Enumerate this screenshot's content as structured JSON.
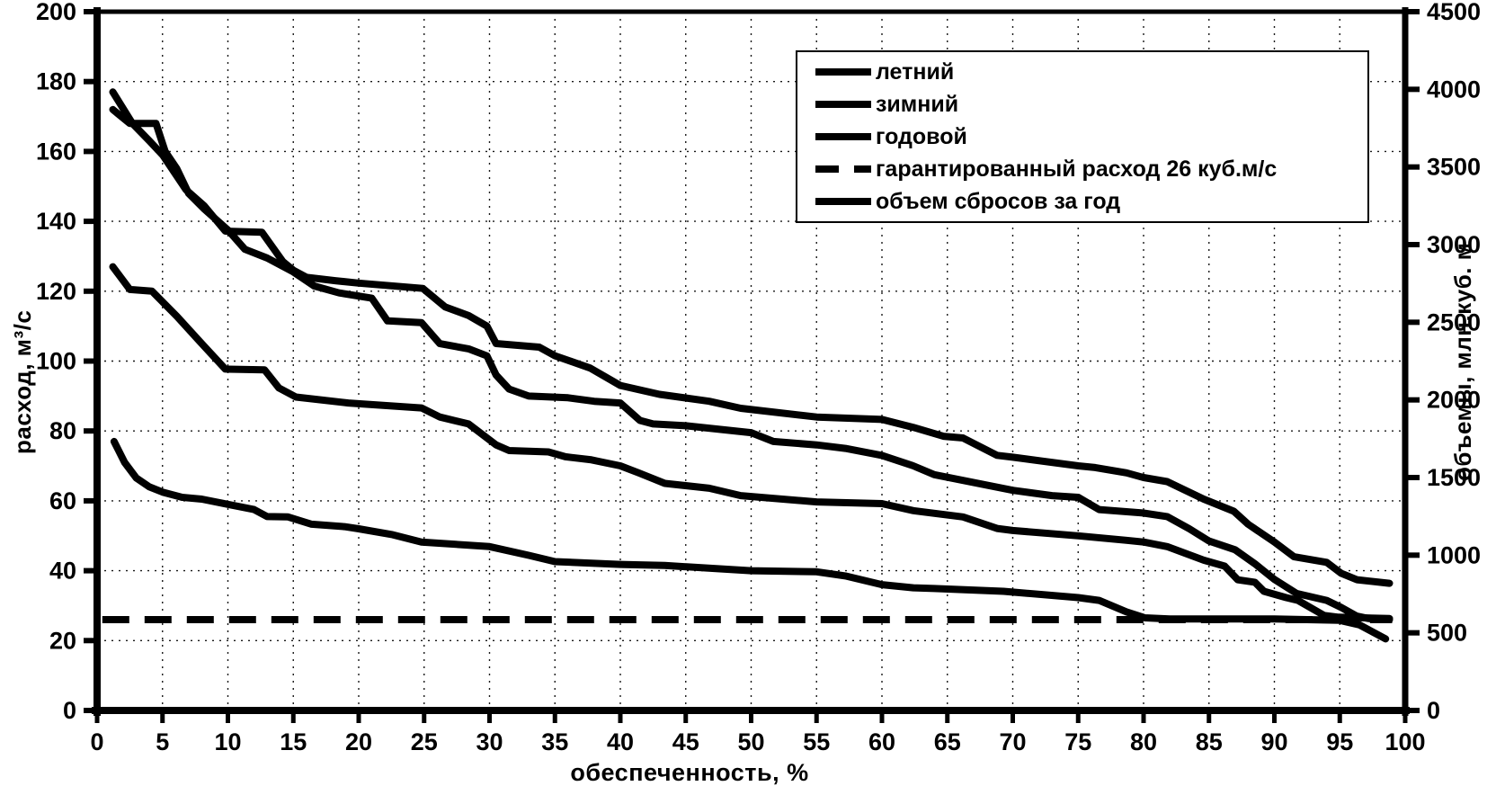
{
  "chart_data": {
    "type": "line",
    "title": "",
    "xlabel": "обеспеченность, %",
    "ylabel_left": "расход, м³/с",
    "ylabel_right": "объемы, млн.куб. м",
    "background": "#ffffff",
    "line_color": "#000000",
    "grid": "dashed",
    "legend_position": "top-right",
    "x_range": [
      0,
      100
    ],
    "x_ticks": [
      0,
      5,
      10,
      15,
      20,
      25,
      30,
      35,
      40,
      45,
      50,
      55,
      60,
      65,
      70,
      75,
      80,
      85,
      90,
      95,
      100
    ],
    "y_left_range": [
      0,
      200
    ],
    "y_left_ticks": [
      0,
      20,
      40,
      60,
      80,
      100,
      120,
      140,
      160,
      180,
      200
    ],
    "y_right_range": [
      0,
      4500
    ],
    "y_right_ticks": [
      0,
      500,
      1000,
      1500,
      2000,
      2500,
      3000,
      3500,
      4000,
      4500
    ],
    "series": [
      {
        "name": "летний",
        "axis": "left",
        "style": "solid",
        "points": [
          [
            1.2,
            172
          ],
          [
            2.5,
            168
          ],
          [
            4.5,
            168
          ],
          [
            5.2,
            160
          ],
          [
            6.1,
            155
          ],
          [
            7,
            148
          ],
          [
            8.2,
            143.5
          ],
          [
            10,
            137.5
          ],
          [
            11.3,
            132
          ],
          [
            13,
            129.5
          ],
          [
            15,
            125.5
          ],
          [
            16.6,
            121.5
          ],
          [
            18.5,
            119.5
          ],
          [
            21,
            118
          ],
          [
            22.2,
            111.5
          ],
          [
            24.8,
            111
          ],
          [
            26.2,
            105
          ],
          [
            28.4,
            103.5
          ],
          [
            29.8,
            101.5
          ],
          [
            30.5,
            96
          ],
          [
            31.5,
            92
          ],
          [
            33,
            90
          ],
          [
            36,
            89.5
          ],
          [
            38,
            88.5
          ],
          [
            40,
            88
          ],
          [
            41.5,
            83
          ],
          [
            42.5,
            82
          ],
          [
            45,
            81.5
          ],
          [
            50,
            79.5
          ],
          [
            51.7,
            77
          ],
          [
            55,
            76
          ],
          [
            57.2,
            75
          ],
          [
            60,
            73
          ],
          [
            62.4,
            70
          ],
          [
            64,
            67.5
          ],
          [
            70,
            63
          ],
          [
            73,
            61.5
          ],
          [
            75,
            61
          ],
          [
            76.6,
            57.5
          ],
          [
            80,
            56.5
          ],
          [
            81.8,
            55.5
          ],
          [
            83.5,
            52
          ],
          [
            85,
            48.5
          ],
          [
            87,
            46
          ],
          [
            88.5,
            42
          ],
          [
            90,
            37.5
          ],
          [
            91.7,
            33.5
          ],
          [
            94,
            31.5
          ],
          [
            95.1,
            29.5
          ],
          [
            96.3,
            27
          ],
          [
            97.2,
            26.3
          ],
          [
            98.8,
            26
          ]
        ]
      },
      {
        "name": "зимний",
        "axis": "left",
        "style": "solid",
        "points": [
          [
            1.3,
            77
          ],
          [
            2.1,
            71
          ],
          [
            3,
            66.5
          ],
          [
            4,
            64
          ],
          [
            5,
            62.5
          ],
          [
            6.5,
            61
          ],
          [
            8,
            60.5
          ],
          [
            10,
            59
          ],
          [
            12,
            57.5
          ],
          [
            13,
            55.5
          ],
          [
            14.6,
            55.4
          ],
          [
            16.4,
            53.3
          ],
          [
            18.9,
            52.6
          ],
          [
            20,
            52
          ],
          [
            22.6,
            50.3
          ],
          [
            24.8,
            48.2
          ],
          [
            30,
            46.9
          ],
          [
            33,
            44.4
          ],
          [
            35,
            42.6
          ],
          [
            40,
            41.8
          ],
          [
            43.4,
            41.5
          ],
          [
            50,
            40
          ],
          [
            55,
            39.7
          ],
          [
            57.2,
            38.5
          ],
          [
            60,
            36
          ],
          [
            62.4,
            35.1
          ],
          [
            64,
            34.9
          ],
          [
            69.3,
            34.1
          ],
          [
            75,
            32.3
          ],
          [
            76.6,
            31.5
          ],
          [
            78.7,
            28.2
          ],
          [
            80.1,
            26.5
          ],
          [
            82,
            26.2
          ],
          [
            90,
            26.2
          ],
          [
            95,
            25.8
          ],
          [
            96.5,
            24.5
          ],
          [
            98.5,
            20.5
          ]
        ]
      },
      {
        "name": "годовой",
        "axis": "left",
        "style": "solid",
        "points": [
          [
            1.2,
            127
          ],
          [
            2.5,
            120.5
          ],
          [
            4.2,
            120
          ],
          [
            6.1,
            112.8
          ],
          [
            8,
            105
          ],
          [
            9.8,
            97.7
          ],
          [
            12.8,
            97.5
          ],
          [
            13.9,
            92.3
          ],
          [
            15.2,
            89.7
          ],
          [
            19.2,
            88
          ],
          [
            24.8,
            86.6
          ],
          [
            26.2,
            84
          ],
          [
            28.4,
            82
          ],
          [
            30.5,
            76
          ],
          [
            31.5,
            74.4
          ],
          [
            34.5,
            74
          ],
          [
            35.8,
            72.6
          ],
          [
            37.7,
            71.8
          ],
          [
            40,
            70
          ],
          [
            41.4,
            68
          ],
          [
            43.4,
            65
          ],
          [
            46.8,
            63.6
          ],
          [
            49.2,
            61.5
          ],
          [
            55,
            59.7
          ],
          [
            60,
            59.2
          ],
          [
            62.4,
            57.2
          ],
          [
            66.2,
            55.4
          ],
          [
            68.8,
            52.1
          ],
          [
            70,
            51.5
          ],
          [
            75,
            50
          ],
          [
            78.7,
            48.7
          ],
          [
            80,
            48.2
          ],
          [
            81.8,
            46.9
          ],
          [
            84.6,
            43
          ],
          [
            86.2,
            41.3
          ],
          [
            87.2,
            37.4
          ],
          [
            88.5,
            36.7
          ],
          [
            89.2,
            34.1
          ],
          [
            90.9,
            32.3
          ],
          [
            91.8,
            31.5
          ],
          [
            93.8,
            27.2
          ],
          [
            94.9,
            26.7
          ],
          [
            98.8,
            26.3
          ]
        ]
      },
      {
        "name": "гарантированный расход 26 куб.м/с",
        "axis": "left",
        "style": "dashed",
        "points": [
          [
            0.4,
            26
          ],
          [
            99,
            26
          ]
        ]
      },
      {
        "name": "объем сбросов за год",
        "axis": "right",
        "style": "solid",
        "points": [
          [
            1.2,
            3983
          ],
          [
            2.7,
            3780
          ],
          [
            4,
            3668
          ],
          [
            5,
            3578
          ],
          [
            6.8,
            3353
          ],
          [
            8.2,
            3249
          ],
          [
            9.8,
            3087
          ],
          [
            12.6,
            3080
          ],
          [
            14.2,
            2891
          ],
          [
            15,
            2835
          ],
          [
            16,
            2790
          ],
          [
            18.2,
            2768
          ],
          [
            20,
            2752
          ],
          [
            24.9,
            2718
          ],
          [
            26.6,
            2599
          ],
          [
            28.4,
            2543
          ],
          [
            29.8,
            2475
          ],
          [
            30.5,
            2363
          ],
          [
            33.8,
            2340
          ],
          [
            35,
            2284
          ],
          [
            37.7,
            2205
          ],
          [
            40,
            2093
          ],
          [
            43,
            2036
          ],
          [
            46.8,
            1991
          ],
          [
            49.2,
            1946
          ],
          [
            55,
            1890
          ],
          [
            60,
            1874
          ],
          [
            62.4,
            1823
          ],
          [
            64.7,
            1766
          ],
          [
            66.2,
            1755
          ],
          [
            68.8,
            1643
          ],
          [
            70,
            1631
          ],
          [
            75,
            1575
          ],
          [
            76.3,
            1564
          ],
          [
            78.7,
            1530
          ],
          [
            80,
            1500
          ],
          [
            81.8,
            1474
          ],
          [
            84.6,
            1361
          ],
          [
            86.9,
            1283
          ],
          [
            88,
            1199
          ],
          [
            90,
            1085
          ],
          [
            91.5,
            990
          ],
          [
            94,
            954
          ],
          [
            95.1,
            884
          ],
          [
            96.3,
            842
          ],
          [
            98.8,
            819
          ]
        ]
      }
    ]
  }
}
